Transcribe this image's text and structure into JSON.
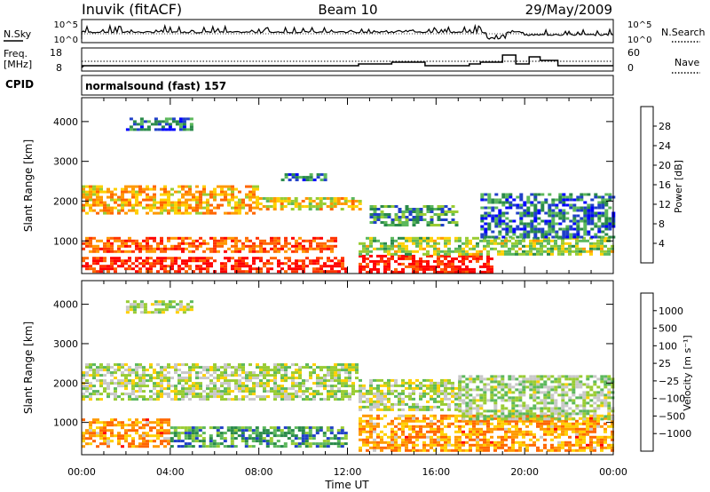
{
  "header": {
    "station": "Inuvik (fitACF)",
    "beam": "Beam 10",
    "date": "29/May/2009"
  },
  "summary_panels": {
    "nsky": {
      "left_label": "N.Sky",
      "left_ticks": [
        "10^5",
        "10^0"
      ],
      "right_label": "N.Search",
      "right_ticks": [
        "10^5",
        "10^0"
      ]
    },
    "freq": {
      "left_label_1": "Freq.",
      "left_label_2": "[MHz]",
      "left_ticks": [
        "18",
        "8"
      ],
      "right_label": "Nave",
      "right_ticks": [
        "60",
        "0"
      ]
    },
    "cpid": {
      "label": "CPID",
      "text": "normalsound (fast) 157"
    }
  },
  "time_axis": {
    "ticks": [
      "00:00",
      "04:00",
      "08:00",
      "12:00",
      "16:00",
      "20:00",
      "00:00"
    ],
    "title": "Time UT"
  },
  "chart_data": [
    {
      "type": "heatmap",
      "name": "power",
      "ylabel": "Slant Range [km]",
      "y_ticks": [
        1000,
        2000,
        3000,
        4000
      ],
      "ylim": [
        180,
        4600
      ],
      "xlim_hours": [
        0,
        24
      ],
      "colorbar": {
        "label": "Power [dB]",
        "ticks": [
          "28",
          "24",
          "20",
          "16",
          "12",
          "8",
          "4"
        ],
        "colors": [
          "#0000ff",
          "#2040c8",
          "#2a8a4a",
          "#5cb85c",
          "#99cc33",
          "#ffd000",
          "#ff9900",
          "#ff6600",
          "#ff3300",
          "#ff0000"
        ]
      },
      "regions": [
        {
          "t": [
            0,
            12
          ],
          "r": [
            200,
            600
          ],
          "level": 0.9
        },
        {
          "t": [
            0,
            11.5
          ],
          "r": [
            700,
            1100
          ],
          "level": 0.78
        },
        {
          "t": [
            0,
            8
          ],
          "r": [
            1700,
            2400
          ],
          "level": 0.62
        },
        {
          "t": [
            8,
            12.5
          ],
          "r": [
            1800,
            2100
          ],
          "level": 0.55
        },
        {
          "t": [
            12.5,
            18.5
          ],
          "r": [
            200,
            650
          ],
          "level": 0.92
        },
        {
          "t": [
            12.5,
            24
          ],
          "r": [
            650,
            1100
          ],
          "level": 0.45
        },
        {
          "t": [
            13,
            17
          ],
          "r": [
            1400,
            1900
          ],
          "level": 0.3
        },
        {
          "t": [
            18,
            24
          ],
          "r": [
            1100,
            2200
          ],
          "level": 0.22
        },
        {
          "t": [
            2,
            5
          ],
          "r": [
            3800,
            4100
          ],
          "level": 0.2
        },
        {
          "t": [
            9,
            11
          ],
          "r": [
            2500,
            2700
          ],
          "level": 0.25
        }
      ]
    },
    {
      "type": "heatmap",
      "name": "velocity",
      "ylabel": "Slant Range [km]",
      "y_ticks": [
        1000,
        2000,
        3000,
        4000
      ],
      "ylim": [
        180,
        4600
      ],
      "xlim_hours": [
        0,
        24
      ],
      "colorbar": {
        "label": "Velocity [m s⁻¹]",
        "ticks": [
          "1000",
          "500",
          "100",
          "25",
          "−25",
          "−100",
          "−500",
          "−1000"
        ],
        "colors": [
          "#2040c8",
          "#2a8a4a",
          "#5cb85c",
          "#99cc33",
          "#c8c8c8",
          "#ffd000",
          "#ff9900",
          "#ff6600",
          "#ff0000"
        ]
      },
      "regions": [
        {
          "t": [
            0,
            4
          ],
          "r": [
            400,
            1100
          ],
          "level": 0.72
        },
        {
          "t": [
            4,
            12
          ],
          "r": [
            400,
            900
          ],
          "level": 0.22
        },
        {
          "t": [
            0,
            12.5
          ],
          "r": [
            1600,
            2500
          ],
          "level": 0.45
        },
        {
          "t": [
            12.5,
            17
          ],
          "r": [
            1300,
            2100
          ],
          "level": 0.45
        },
        {
          "t": [
            12.5,
            24
          ],
          "r": [
            300,
            1200
          ],
          "level": 0.72
        },
        {
          "t": [
            17,
            24
          ],
          "r": [
            1100,
            2200
          ],
          "level": 0.4
        },
        {
          "t": [
            2,
            5
          ],
          "r": [
            3800,
            4100
          ],
          "level": 0.45
        }
      ]
    }
  ]
}
